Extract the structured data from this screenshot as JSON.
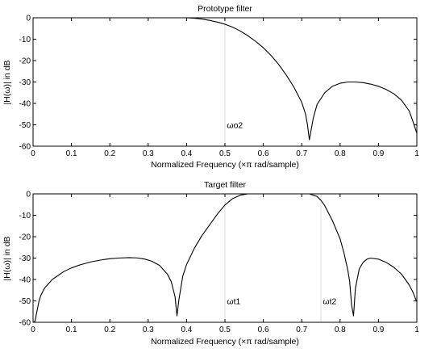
{
  "chart_data": [
    {
      "type": "line",
      "title": "Prototype filter",
      "xlabel": "Normalized Frequency  (×π rad/sample)",
      "ylabel": "|H(ω)| in dB",
      "xlim": [
        0,
        1
      ],
      "ylim": [
        -60,
        0
      ],
      "xticks": [
        "0",
        "0.1",
        "0.2",
        "0.3",
        "0.4",
        "0.5",
        "0.6",
        "0.7",
        "0.8",
        "0.9",
        "1"
      ],
      "yticks": [
        "0",
        "-10",
        "-20",
        "-30",
        "-40",
        "-50",
        "-60"
      ],
      "grid": false,
      "annotations": [
        {
          "text": "ωo2",
          "x": 0.505,
          "y": -50
        }
      ],
      "reference_lines_x": [
        0.5
      ],
      "series": [
        {
          "color": "#000000",
          "x": [
            0.0,
            0.1,
            0.2,
            0.3,
            0.35,
            0.4,
            0.42,
            0.44,
            0.46,
            0.48,
            0.5,
            0.52,
            0.54,
            0.56,
            0.58,
            0.6,
            0.62,
            0.64,
            0.66,
            0.68,
            0.7,
            0.71,
            0.715,
            0.72,
            0.725,
            0.73,
            0.74,
            0.76,
            0.78,
            0.8,
            0.82,
            0.84,
            0.86,
            0.88,
            0.9,
            0.92,
            0.94,
            0.96,
            0.98,
            0.99,
            1.0
          ],
          "y": [
            0,
            0,
            0,
            0,
            0,
            0,
            -0.2,
            -0.6,
            -1.2,
            -2.0,
            -3.0,
            -4.4,
            -6.2,
            -8.4,
            -11.0,
            -14.0,
            -17.6,
            -21.8,
            -26.8,
            -32.5,
            -39.5,
            -45.0,
            -50.0,
            -57.0,
            -52.0,
            -47.0,
            -40.5,
            -35.0,
            -32.0,
            -30.6,
            -30.0,
            -30.0,
            -30.3,
            -31.0,
            -32.0,
            -33.5,
            -35.5,
            -38.5,
            -43.5,
            -48.5,
            -54.0
          ]
        }
      ]
    },
    {
      "type": "line",
      "title": "Target filter",
      "xlabel": "Normalized Frequency  (×π rad/sample)",
      "ylabel": "|H(ω)| in dB",
      "xlim": [
        0,
        1
      ],
      "ylim": [
        -60,
        0
      ],
      "xticks": [
        "0",
        "0.1",
        "0.2",
        "0.3",
        "0.4",
        "0.5",
        "0.6",
        "0.7",
        "0.8",
        "0.9",
        "1"
      ],
      "yticks": [
        "0",
        "-10",
        "-20",
        "-30",
        "-40",
        "-50",
        "-60"
      ],
      "grid": false,
      "annotations": [
        {
          "text": "ωt1",
          "x": 0.505,
          "y": -50
        },
        {
          "text": "ωt2",
          "x": 0.755,
          "y": -50
        }
      ],
      "reference_lines_x": [
        0.5,
        0.75
      ],
      "series": [
        {
          "color": "#000000",
          "x": [
            0.0,
            0.005,
            0.01,
            0.015,
            0.02,
            0.03,
            0.05,
            0.08,
            0.1,
            0.12,
            0.15,
            0.18,
            0.2,
            0.22,
            0.25,
            0.27,
            0.29,
            0.31,
            0.33,
            0.35,
            0.36,
            0.37,
            0.375,
            0.38,
            0.39,
            0.4,
            0.42,
            0.44,
            0.46,
            0.48,
            0.5,
            0.52,
            0.54,
            0.56,
            0.6,
            0.65,
            0.7,
            0.72,
            0.74,
            0.75,
            0.76,
            0.78,
            0.8,
            0.81,
            0.82,
            0.825,
            0.83,
            0.835,
            0.84,
            0.85,
            0.86,
            0.87,
            0.88,
            0.9,
            0.92,
            0.94,
            0.96,
            0.98,
            0.99,
            1.0
          ],
          "y": [
            -60,
            -59.5,
            -55,
            -50.5,
            -47.5,
            -44.0,
            -40.0,
            -36.3,
            -34.6,
            -33.3,
            -31.8,
            -30.8,
            -30.3,
            -30.0,
            -29.8,
            -29.9,
            -30.4,
            -31.5,
            -33.5,
            -37.5,
            -41.0,
            -48.0,
            -57.0,
            -49.5,
            -38.5,
            -33.0,
            -25.5,
            -19.5,
            -14.5,
            -9.5,
            -5.2,
            -2.2,
            -0.6,
            0.0,
            0.0,
            0.0,
            0.0,
            0.0,
            -1.2,
            -3.0,
            -5.5,
            -12.5,
            -21.0,
            -27.5,
            -35.5,
            -41.0,
            -52.0,
            -57.0,
            -44.0,
            -35.0,
            -32.0,
            -30.5,
            -30.0,
            -30.5,
            -32.0,
            -34.3,
            -37.5,
            -42.5,
            -46.0,
            -50.5
          ]
        }
      ]
    }
  ]
}
